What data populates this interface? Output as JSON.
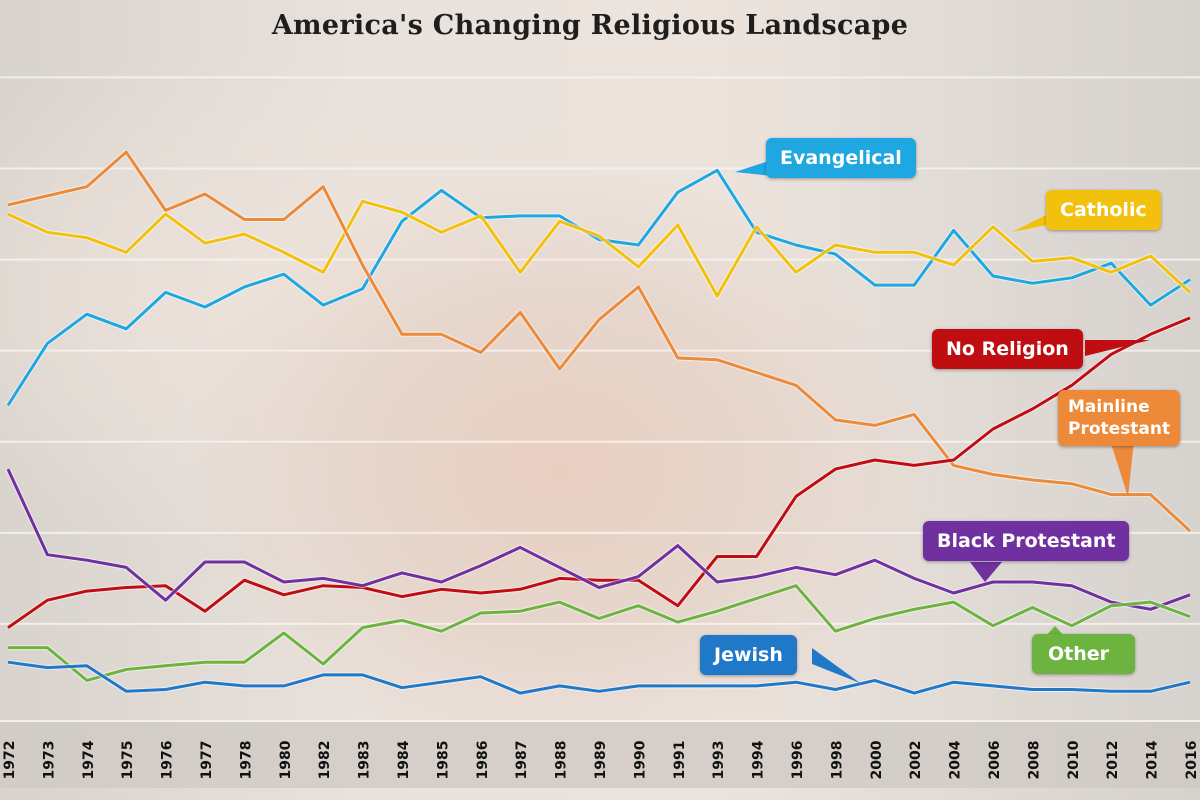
{
  "chart_data": {
    "type": "line",
    "title": "America's Changing Religious Landscape",
    "xlabel": "",
    "ylabel": "",
    "ylim": [
      0,
      37
    ],
    "grid": true,
    "categories": [
      "1972",
      "1973",
      "1974",
      "1975",
      "1976",
      "1977",
      "1978",
      "1980",
      "1982",
      "1983",
      "1984",
      "1985",
      "1986",
      "1987",
      "1988",
      "1989",
      "1990",
      "1991",
      "1993",
      "1994",
      "1996",
      "1998",
      "2000",
      "2002",
      "2004",
      "2006",
      "2008",
      "2010",
      "2012",
      "2014",
      "2016"
    ],
    "series": [
      {
        "name": "Evangelical",
        "color": "#1ea7e1",
        "values": [
          17.0,
          20.4,
          22.0,
          21.2,
          23.2,
          22.4,
          23.5,
          24.2,
          22.5,
          23.4,
          27.1,
          28.8,
          27.3,
          27.4,
          27.4,
          26.1,
          25.8,
          28.7,
          29.9,
          26.5,
          25.8,
          25.3,
          23.6,
          23.6,
          26.6,
          24.1,
          23.7,
          24.0,
          24.8,
          22.5,
          23.9
        ]
      },
      {
        "name": "Catholic",
        "color": "#f2c10e",
        "values": [
          27.5,
          26.5,
          26.2,
          25.4,
          27.5,
          25.9,
          26.4,
          25.4,
          24.3,
          28.2,
          27.6,
          26.5,
          27.4,
          24.3,
          27.1,
          26.3,
          24.6,
          26.9,
          23.0,
          26.8,
          24.3,
          25.8,
          25.4,
          25.4,
          24.7,
          26.8,
          24.9,
          25.1,
          24.3,
          25.2,
          23.2
        ]
      },
      {
        "name": "Mainline Protestant",
        "color": "#ec8a3a",
        "values": [
          28.0,
          28.5,
          29.0,
          30.9,
          27.7,
          28.6,
          27.2,
          27.2,
          29.0,
          24.7,
          20.9,
          20.9,
          19.9,
          22.1,
          19.0,
          21.7,
          23.5,
          19.6,
          19.5,
          18.8,
          18.1,
          16.2,
          15.9,
          16.5,
          13.7,
          13.2,
          12.9,
          12.7,
          12.1,
          12.1,
          10.1
        ]
      },
      {
        "name": "No Religion",
        "color": "#c00d12",
        "values": [
          4.8,
          6.3,
          6.8,
          7.0,
          7.1,
          5.7,
          7.4,
          6.6,
          7.1,
          7.0,
          6.5,
          6.9,
          6.7,
          6.9,
          7.5,
          7.4,
          7.4,
          6.0,
          8.7,
          8.7,
          12.0,
          13.5,
          14.0,
          13.7,
          14.0,
          15.7,
          16.8,
          18.1,
          19.8,
          20.9,
          21.8
        ]
      },
      {
        "name": "Black Protestant",
        "color": "#7030a0",
        "values": [
          13.5,
          8.8,
          8.5,
          8.1,
          6.3,
          8.4,
          8.4,
          7.3,
          7.5,
          7.1,
          7.8,
          7.3,
          8.2,
          9.2,
          8.1,
          7.0,
          7.6,
          9.3,
          7.3,
          7.6,
          8.1,
          7.7,
          8.5,
          7.5,
          6.7,
          7.3,
          7.3,
          7.1,
          6.2,
          5.8,
          6.6
        ]
      },
      {
        "name": "Other",
        "color": "#6cb33f",
        "values": [
          3.7,
          3.7,
          1.9,
          2.5,
          2.7,
          2.9,
          2.9,
          4.5,
          2.8,
          4.8,
          5.2,
          4.6,
          5.6,
          5.7,
          6.2,
          5.3,
          6.0,
          5.1,
          5.7,
          6.4,
          7.1,
          4.6,
          5.3,
          5.8,
          6.2,
          4.9,
          5.9,
          4.9,
          6.0,
          6.2,
          5.4
        ]
      },
      {
        "name": "Jewish",
        "color": "#1f78c8",
        "values": [
          2.9,
          2.6,
          2.7,
          1.3,
          1.4,
          1.8,
          1.6,
          1.6,
          2.2,
          2.2,
          1.5,
          1.8,
          2.1,
          1.2,
          1.6,
          1.3,
          1.6,
          1.6,
          1.6,
          1.6,
          1.8,
          1.4,
          1.9,
          1.2,
          1.8,
          1.6,
          1.4,
          1.4,
          1.3,
          1.3,
          1.8
        ]
      }
    ]
  },
  "labels": {
    "evangelical": "Evangelical",
    "catholic": "Catholic",
    "no_religion": "No Religion",
    "mainline_line1": "Mainline",
    "mainline_line2": "Protestant",
    "black_protestant": "Black Protestant",
    "jewish": "Jewish",
    "other": "Other"
  }
}
